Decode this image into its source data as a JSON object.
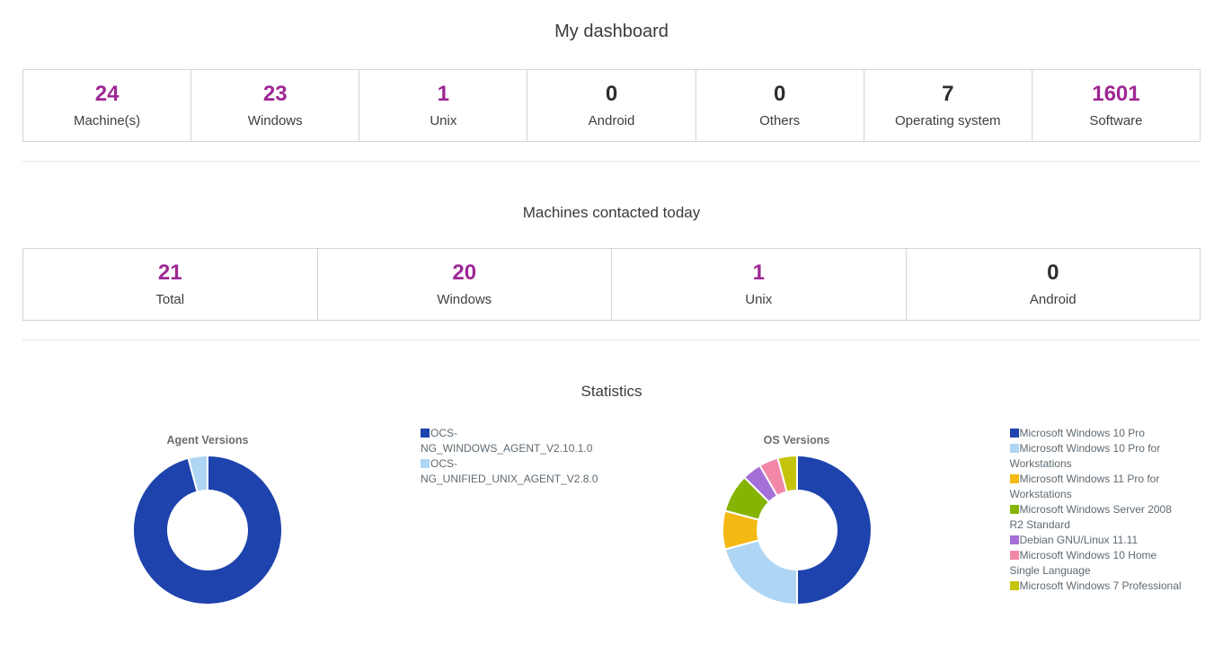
{
  "page": {
    "title": "My dashboard"
  },
  "colors": {
    "accent": "#9E2794",
    "plain": "#2e2e2e"
  },
  "summary": {
    "cards": [
      {
        "value": "24",
        "label": "Machine(s)",
        "color": "#9E2794"
      },
      {
        "value": "23",
        "label": "Windows",
        "color": "#9E2794"
      },
      {
        "value": "1",
        "label": "Unix",
        "color": "#9E2794"
      },
      {
        "value": "0",
        "label": "Android",
        "color": "#2e2e2e"
      },
      {
        "value": "0",
        "label": "Others",
        "color": "#2e2e2e"
      },
      {
        "value": "7",
        "label": "Operating system",
        "color": "#2e2e2e"
      },
      {
        "value": "1601",
        "label": "Software",
        "color": "#9E2794"
      }
    ]
  },
  "contacted": {
    "title": "Machines contacted today",
    "cards": [
      {
        "value": "21",
        "label": "Total",
        "color": "#9E2794"
      },
      {
        "value": "20",
        "label": "Windows",
        "color": "#9E2794"
      },
      {
        "value": "1",
        "label": "Unix",
        "color": "#9E2794"
      },
      {
        "value": "0",
        "label": "Android",
        "color": "#2e2e2e"
      }
    ]
  },
  "statistics": {
    "title": "Statistics",
    "legend_text_color": "#5e6a73",
    "chart_title_color": "#6d6d6d"
  },
  "chart_data": [
    {
      "type": "pie",
      "subtype": "donut",
      "title": "Agent Versions",
      "labels": [
        "OCS-NG_WINDOWS_AGENT_V2.10.1.0",
        "OCS-NG_UNIFIED_UNIX_AGENT_V2.8.0"
      ],
      "values": [
        23,
        1
      ],
      "colors": [
        "#1E43AD",
        "#AED5F3"
      ],
      "total": 24,
      "donut_hole_ratio": 0.53,
      "start_angle_deg": 0,
      "legend_position": "right"
    },
    {
      "type": "pie",
      "subtype": "donut",
      "title": "OS Versions",
      "labels": [
        "Microsoft Windows 10 Pro",
        "Microsoft Windows 10 Pro for Workstations",
        "Microsoft Windows 11 Pro for Workstations",
        "Microsoft Windows Server 2008 R2 Standard",
        "Debian GNU/Linux 11.11",
        "Microsoft Windows 10 Home Single Language",
        "Microsoft Windows 7 Professional"
      ],
      "values": [
        12,
        5,
        2,
        2,
        1,
        1,
        1
      ],
      "colors": [
        "#1E43AD",
        "#AED5F3",
        "#F4B912",
        "#86B404",
        "#A470D8",
        "#F287A8",
        "#C4C40A"
      ],
      "total": 24,
      "donut_hole_ratio": 0.53,
      "start_angle_deg": 0,
      "legend_position": "right"
    }
  ]
}
